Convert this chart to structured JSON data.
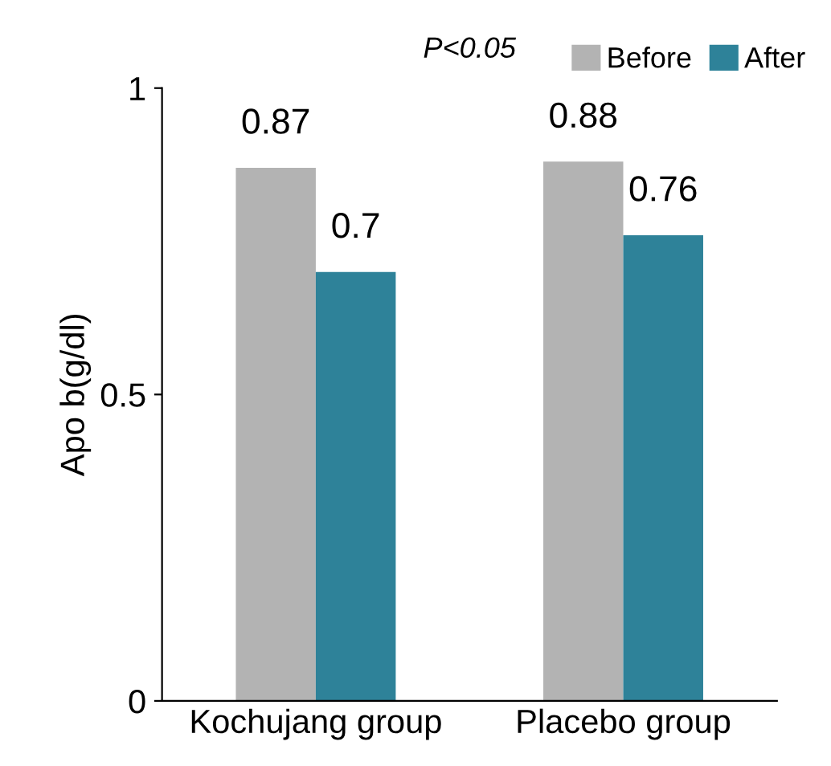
{
  "chart_data": {
    "type": "bar",
    "ylabel": "Apo b(g/dl)",
    "categories": [
      "Kochujang group",
      "Placebo group"
    ],
    "series": [
      {
        "name": "Before",
        "color": "#b3b3b3",
        "values": [
          0.87,
          0.88
        ]
      },
      {
        "name": "After",
        "color": "#2e8299",
        "values": [
          0.7,
          0.76
        ]
      }
    ],
    "ylim": [
      0,
      1
    ],
    "yticks": [
      0,
      0.5,
      1
    ],
    "data_labels": true,
    "legend": "top right",
    "grid": false,
    "annotations": [
      "P<0.05"
    ]
  }
}
